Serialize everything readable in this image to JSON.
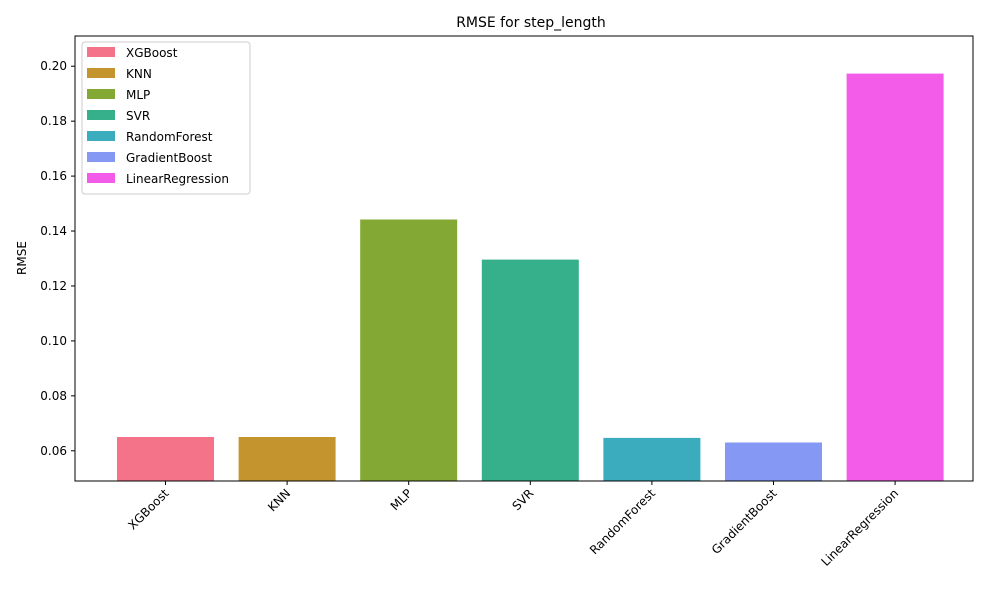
{
  "chart_data": {
    "type": "bar",
    "title": "RMSE for step_length",
    "xlabel": "",
    "ylabel": "RMSE",
    "categories": [
      "XGBoost",
      "KNN",
      "MLP",
      "SVR",
      "RandomForest",
      "GradientBoost",
      "LinearRegression"
    ],
    "values": [
      0.065,
      0.065,
      0.1442,
      0.1296,
      0.0647,
      0.063,
      0.1973
    ],
    "colors": [
      "#f47388",
      "#c4952f",
      "#83a833",
      "#36b08b",
      "#3aacbd",
      "#8598f4",
      "#f35ce8"
    ],
    "ylim": [
      0.049,
      0.211
    ],
    "yticks": [
      "0.06",
      "0.08",
      "0.10",
      "0.12",
      "0.14",
      "0.16",
      "0.18",
      "0.20"
    ],
    "grid": false,
    "legend_position": "top-left",
    "legend": [
      "XGBoost",
      "KNN",
      "MLP",
      "SVR",
      "RandomForest",
      "GradientBoost",
      "LinearRegression"
    ]
  }
}
